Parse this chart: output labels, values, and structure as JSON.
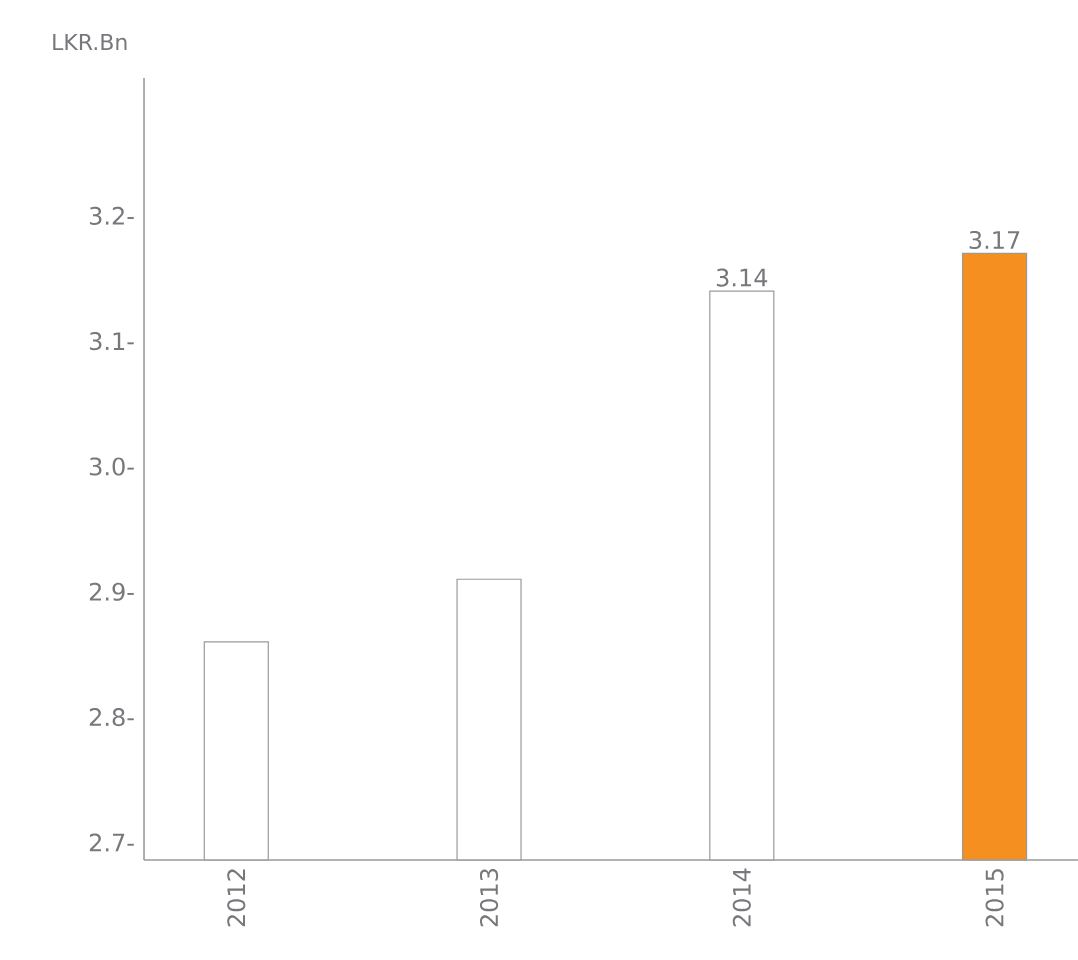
{
  "chart_data": {
    "type": "bar",
    "ylabel": "LKR.Bn",
    "categories": [
      "2012",
      "2013",
      "2014",
      "2015"
    ],
    "values": [
      2.86,
      2.91,
      3.14,
      3.17
    ],
    "colors": [
      "#ffffff",
      "#ffffff",
      "#ffffff",
      "#f58f1f"
    ],
    "value_labels": [
      null,
      null,
      "3.14",
      "3.17"
    ],
    "ylim": [
      2.686,
      3.31
    ],
    "yticks": [
      {
        "value": 2.7,
        "label": "2.7-"
      },
      {
        "value": 2.8,
        "label": "2.8-"
      },
      {
        "value": 2.9,
        "label": "2.9-"
      },
      {
        "value": 3.0,
        "label": "3.0-"
      },
      {
        "value": 3.1,
        "label": "3.1-"
      },
      {
        "value": 3.2,
        "label": "3.2-"
      }
    ]
  }
}
